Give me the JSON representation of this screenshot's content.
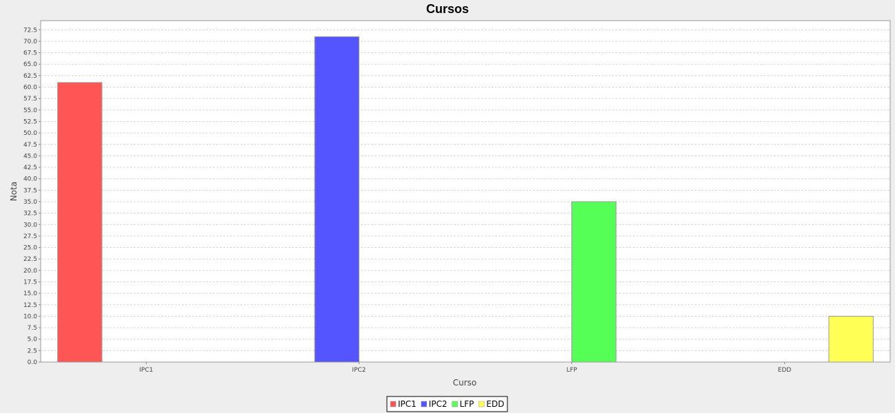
{
  "chart_data": {
    "type": "bar",
    "title": "Cursos",
    "xlabel": "Curso",
    "ylabel": "Nota",
    "categories": [
      "IPC1",
      "IPC2",
      "LFP",
      "EDD"
    ],
    "series": [
      {
        "name": "IPC1",
        "color": "#ff5555",
        "values": [
          61,
          null,
          null,
          null
        ]
      },
      {
        "name": "IPC2",
        "color": "#5555ff",
        "values": [
          null,
          71,
          null,
          null
        ]
      },
      {
        "name": "LFP",
        "color": "#55ff55",
        "values": [
          null,
          null,
          35,
          null
        ]
      },
      {
        "name": "EDD",
        "color": "#ffff55",
        "values": [
          null,
          null,
          null,
          10
        ]
      }
    ],
    "ylim": [
      0,
      74.5
    ],
    "ytick_step": 2.5,
    "grid": true,
    "legend_position": "bottom"
  },
  "colors": {
    "page_background": "#eeeeee",
    "plot_background": "#ffffff",
    "gridline": "#d8d8d8",
    "bar_outline": "#999999"
  }
}
